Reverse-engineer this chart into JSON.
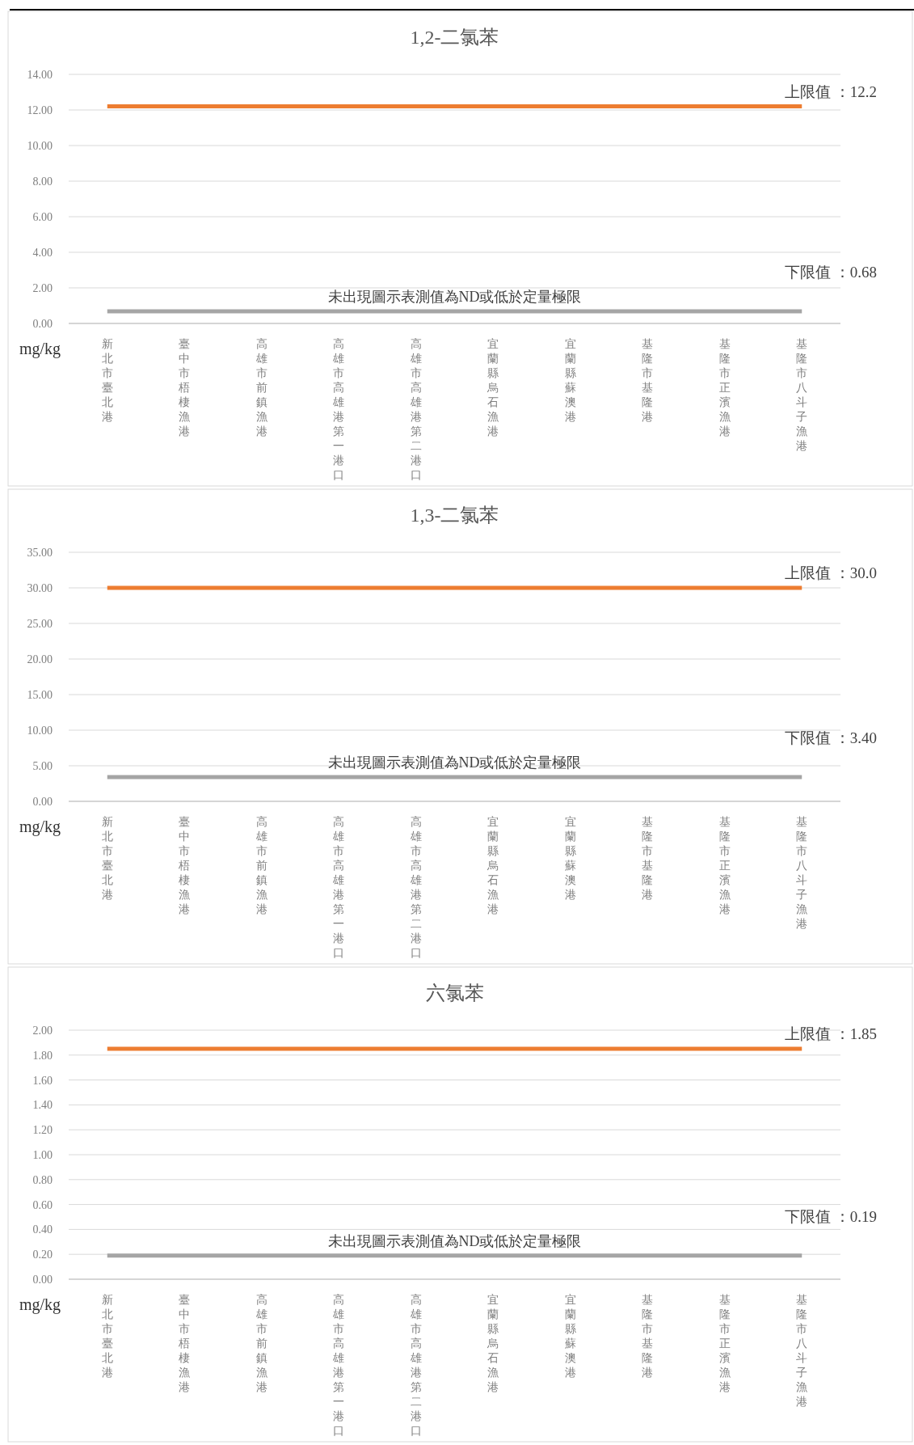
{
  "chart_data": [
    {
      "type": "line",
      "title": "1,2-二氯苯",
      "ylabel": "mg/kg",
      "categories": [
        "新北市臺北港",
        "臺中市梧棲漁港",
        "高雄市前鎮漁港",
        "高雄市高雄港第一港口",
        "高雄市高雄港第二港口",
        "宜蘭縣烏石漁港",
        "宜蘭縣蘇澳港",
        "基隆市基隆港",
        "基隆市正濱漁港",
        "基隆市八斗子漁港"
      ],
      "ylim": [
        0,
        14
      ],
      "yticks": [
        {
          "value": 0,
          "label": "0.00"
        },
        {
          "value": 2,
          "label": "2.00"
        },
        {
          "value": 4,
          "label": "4.00"
        },
        {
          "value": 6,
          "label": "6.00"
        },
        {
          "value": 8,
          "label": "8.00"
        },
        {
          "value": 10,
          "label": "10.00"
        },
        {
          "value": 12,
          "label": "12.00"
        },
        {
          "value": 14,
          "label": "14.00"
        }
      ],
      "grid": "y",
      "ref_lines": [
        {
          "axis": "y",
          "value": 12.2,
          "label": "上限值 ：12.2",
          "color": "#ed7d31"
        },
        {
          "axis": "y",
          "value": 0.68,
          "label": "下限值 ：0.68",
          "color": "#a5a5a5"
        }
      ],
      "annotations": [
        "未出現圖示表測值為ND或低於定量極限"
      ]
    },
    {
      "type": "line",
      "title": "1,3-二氯苯",
      "ylabel": "mg/kg",
      "categories": [
        "新北市臺北港",
        "臺中市梧棲漁港",
        "高雄市前鎮漁港",
        "高雄市高雄港第一港口",
        "高雄市高雄港第二港口",
        "宜蘭縣烏石漁港",
        "宜蘭縣蘇澳港",
        "基隆市基隆港",
        "基隆市正濱漁港",
        "基隆市八斗子漁港"
      ],
      "ylim": [
        0,
        35
      ],
      "yticks": [
        {
          "value": 0,
          "label": "0.00"
        },
        {
          "value": 5,
          "label": "5.00"
        },
        {
          "value": 10,
          "label": "10.00"
        },
        {
          "value": 15,
          "label": "15.00"
        },
        {
          "value": 20,
          "label": "20.00"
        },
        {
          "value": 25,
          "label": "25.00"
        },
        {
          "value": 30,
          "label": "30.00"
        },
        {
          "value": 35,
          "label": "35.00"
        }
      ],
      "grid": "y",
      "ref_lines": [
        {
          "axis": "y",
          "value": 30.0,
          "label": "上限值 ：30.0",
          "color": "#ed7d31"
        },
        {
          "axis": "y",
          "value": 3.4,
          "label": "下限值 ：3.40",
          "color": "#a5a5a5"
        }
      ],
      "annotations": [
        "未出現圖示表測值為ND或低於定量極限"
      ]
    },
    {
      "type": "line",
      "title": "六氯苯",
      "ylabel": "mg/kg",
      "categories": [
        "新北市臺北港",
        "臺中市梧棲漁港",
        "高雄市前鎮漁港",
        "高雄市高雄港第一港口",
        "高雄市高雄港第二港口",
        "宜蘭縣烏石漁港",
        "宜蘭縣蘇澳港",
        "基隆市基隆港",
        "基隆市正濱漁港",
        "基隆市八斗子漁港"
      ],
      "ylim": [
        0,
        2
      ],
      "yticks": [
        {
          "value": 0,
          "label": "0.00"
        },
        {
          "value": 0.2,
          "label": "0.20"
        },
        {
          "value": 0.4,
          "label": "0.40"
        },
        {
          "value": 0.6,
          "label": "0.60"
        },
        {
          "value": 0.8,
          "label": "0.80"
        },
        {
          "value": 1,
          "label": "1.00"
        },
        {
          "value": 1.2,
          "label": "1.20"
        },
        {
          "value": 1.4,
          "label": "1.40"
        },
        {
          "value": 1.6,
          "label": "1.60"
        },
        {
          "value": 1.8,
          "label": "1.80"
        },
        {
          "value": 2,
          "label": "2.00"
        }
      ],
      "grid": "y",
      "ref_lines": [
        {
          "axis": "y",
          "value": 1.85,
          "label": "上限值 ：1.85",
          "color": "#ed7d31"
        },
        {
          "axis": "y",
          "value": 0.19,
          "label": "下限值 ：0.19",
          "color": "#a5a5a5"
        }
      ],
      "annotations": [
        "未出現圖示表測值為ND或低於定量極限"
      ]
    }
  ]
}
